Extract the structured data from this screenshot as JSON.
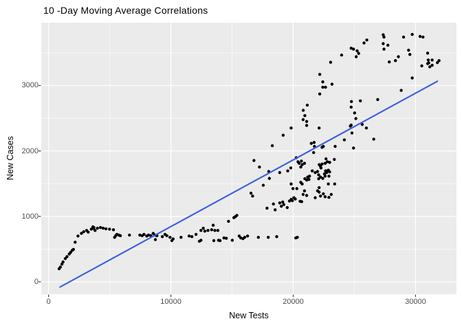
{
  "title": "10 -Day Moving Average Correlations",
  "chart_data": {
    "type": "scatter",
    "title": "10 -Day Moving Average Correlations",
    "xlabel": "New Tests",
    "ylabel": "New Cases",
    "x_ticks": [
      0,
      10000,
      20000,
      30000
    ],
    "x_minor_ticks": [
      5000,
      15000,
      25000
    ],
    "y_ticks": [
      0,
      1000,
      2000,
      3000
    ],
    "y_minor_ticks": [
      500,
      1500,
      2500,
      3500
    ],
    "xlim": [
      -600,
      33350
    ],
    "ylim": [
      -190,
      3960
    ],
    "grid": "on",
    "legend": "none",
    "colors": {
      "panel_bg": "#EBEBEB",
      "grid_major": "#FFFFFF",
      "grid_minor": "#FFFFFF",
      "point": "#000000",
      "trend": "#3D62DC",
      "tick": "#333333",
      "axis_text": "#4D4D4D"
    },
    "trend_line": {
      "x1": 930,
      "y1": -80,
      "x2": 31790,
      "y2": 3065
    },
    "points": [
      [
        860,
        200
      ],
      [
        960,
        225
      ],
      [
        1090,
        270
      ],
      [
        1180,
        305
      ],
      [
        1370,
        355
      ],
      [
        1500,
        385
      ],
      [
        1690,
        425
      ],
      [
        1800,
        450
      ],
      [
        1930,
        480
      ],
      [
        2030,
        495
      ],
      [
        2170,
        605
      ],
      [
        2400,
        700
      ],
      [
        2680,
        740
      ],
      [
        2870,
        765
      ],
      [
        3110,
        785
      ],
      [
        3240,
        760
      ],
      [
        3490,
        805
      ],
      [
        3620,
        840
      ],
      [
        3670,
        815
      ],
      [
        3700,
        830
      ],
      [
        3800,
        785
      ],
      [
        3990,
        820
      ],
      [
        4240,
        830
      ],
      [
        4460,
        820
      ],
      [
        4690,
        810
      ],
      [
        4980,
        805
      ],
      [
        5300,
        795
      ],
      [
        5400,
        680
      ],
      [
        5490,
        705
      ],
      [
        5590,
        725
      ],
      [
        5740,
        715
      ],
      [
        5870,
        705
      ],
      [
        6610,
        715
      ],
      [
        7460,
        715
      ],
      [
        7650,
        705
      ],
      [
        7800,
        725
      ],
      [
        8020,
        700
      ],
      [
        8170,
        715
      ],
      [
        8360,
        705
      ],
      [
        8550,
        740
      ],
      [
        8680,
        715
      ],
      [
        8730,
        645
      ],
      [
        8860,
        705
      ],
      [
        9300,
        690
      ],
      [
        9520,
        725
      ],
      [
        9670,
        705
      ],
      [
        9930,
        680
      ],
      [
        10080,
        630
      ],
      [
        10180,
        655
      ],
      [
        10830,
        680
      ],
      [
        11490,
        700
      ],
      [
        11720,
        690
      ],
      [
        12050,
        725
      ],
      [
        12330,
        620
      ],
      [
        12460,
        635
      ],
      [
        12460,
        785
      ],
      [
        12650,
        820
      ],
      [
        12770,
        775
      ],
      [
        13030,
        785
      ],
      [
        13330,
        795
      ],
      [
        13460,
        865
      ],
      [
        13510,
        630
      ],
      [
        13590,
        785
      ],
      [
        13840,
        785
      ],
      [
        13890,
        635
      ],
      [
        14020,
        630
      ],
      [
        14340,
        670
      ],
      [
        14530,
        665
      ],
      [
        14710,
        925
      ],
      [
        15020,
        635
      ],
      [
        15150,
        980
      ],
      [
        15270,
        995
      ],
      [
        15390,
        1015
      ],
      [
        15580,
        700
      ],
      [
        15710,
        670
      ],
      [
        15890,
        660
      ],
      [
        16030,
        680
      ],
      [
        16270,
        700
      ],
      [
        16550,
        1355
      ],
      [
        16680,
        1310
      ],
      [
        16790,
        1855
      ],
      [
        17150,
        680
      ],
      [
        17240,
        1755
      ],
      [
        17550,
        1475
      ],
      [
        17860,
        1125
      ],
      [
        17960,
        680
      ],
      [
        18050,
        1580
      ],
      [
        18000,
        1685
      ],
      [
        18650,
        690
      ],
      [
        20210,
        670
      ],
      [
        20340,
        680
      ],
      [
        18380,
        1190
      ],
      [
        18520,
        1100
      ],
      [
        18900,
        1205
      ],
      [
        19030,
        1155
      ],
      [
        19140,
        1220
      ],
      [
        19230,
        1180
      ],
      [
        19510,
        1135
      ],
      [
        19690,
        1235
      ],
      [
        19830,
        1260
      ],
      [
        19930,
        1240
      ],
      [
        20050,
        1285
      ],
      [
        20170,
        1265
      ],
      [
        20560,
        1230
      ],
      [
        20690,
        1225
      ],
      [
        18290,
        2080
      ],
      [
        19180,
        2240
      ],
      [
        19830,
        2350
      ],
      [
        20250,
        1895
      ],
      [
        20390,
        1835
      ],
      [
        20670,
        1845
      ],
      [
        20490,
        1810
      ],
      [
        20730,
        1790
      ],
      [
        20920,
        1810
      ],
      [
        20620,
        1755
      ],
      [
        19550,
        1695
      ],
      [
        19800,
        1740
      ],
      [
        18900,
        1670
      ],
      [
        21560,
        1695
      ],
      [
        21800,
        1670
      ],
      [
        21180,
        1600
      ],
      [
        21290,
        1565
      ],
      [
        21100,
        1555
      ],
      [
        20950,
        1575
      ],
      [
        21330,
        1615
      ],
      [
        19830,
        1495
      ],
      [
        20620,
        1520
      ],
      [
        20730,
        1495
      ],
      [
        19980,
        1425
      ],
      [
        20300,
        1425
      ],
      [
        20920,
        1390
      ],
      [
        20810,
        1335
      ],
      [
        21100,
        1320
      ],
      [
        21800,
        1285
      ],
      [
        21480,
        2115
      ],
      [
        21710,
        2130
      ],
      [
        21740,
        2070
      ],
      [
        22360,
        2055
      ],
      [
        21670,
        1975
      ],
      [
        22790,
        1835
      ],
      [
        22980,
        1825
      ],
      [
        22610,
        1810
      ],
      [
        22360,
        1800
      ],
      [
        22120,
        1790
      ],
      [
        22230,
        1765
      ],
      [
        22270,
        1740
      ],
      [
        22680,
        1880
      ],
      [
        23360,
        1870
      ],
      [
        22640,
        1695
      ],
      [
        22980,
        1680
      ],
      [
        22740,
        1670
      ],
      [
        22550,
        1650
      ],
      [
        22080,
        1635
      ],
      [
        21990,
        1685
      ],
      [
        22230,
        1600
      ],
      [
        22610,
        1615
      ],
      [
        22920,
        1615
      ],
      [
        22420,
        1580
      ],
      [
        22080,
        1575
      ],
      [
        22870,
        1495
      ],
      [
        23390,
        1495
      ],
      [
        22120,
        1440
      ],
      [
        21990,
        1390
      ],
      [
        22460,
        1345
      ],
      [
        23110,
        1335
      ],
      [
        22230,
        1310
      ],
      [
        22610,
        1300
      ],
      [
        22920,
        1290
      ],
      [
        22120,
        1370
      ],
      [
        22870,
        1705
      ],
      [
        22680,
        1695
      ],
      [
        22460,
        2070
      ],
      [
        23430,
        2070
      ],
      [
        22120,
        2350
      ],
      [
        24180,
        2170
      ],
      [
        24800,
        2275
      ],
      [
        24930,
        2045
      ],
      [
        26580,
        2180
      ],
      [
        20820,
        2620
      ],
      [
        20950,
        2540
      ],
      [
        20810,
        2480
      ],
      [
        21100,
        2450
      ],
      [
        21100,
        2390
      ],
      [
        21150,
        2700
      ],
      [
        24760,
        2755
      ],
      [
        24740,
        2670
      ],
      [
        25020,
        2580
      ],
      [
        25120,
        2495
      ],
      [
        24670,
        2380
      ],
      [
        24740,
        2395
      ],
      [
        25640,
        2405
      ],
      [
        25980,
        2350
      ],
      [
        25490,
        2765
      ],
      [
        26910,
        2785
      ],
      [
        28830,
        2925
      ],
      [
        29730,
        3115
      ],
      [
        22170,
        3170
      ],
      [
        22420,
        3055
      ],
      [
        22420,
        2975
      ],
      [
        22640,
        2975
      ],
      [
        22170,
        2870
      ],
      [
        23060,
        3355
      ],
      [
        23170,
        3020
      ],
      [
        23960,
        3465
      ],
      [
        24740,
        3570
      ],
      [
        24930,
        3555
      ],
      [
        25230,
        3530
      ],
      [
        25350,
        3490
      ],
      [
        25150,
        3440
      ],
      [
        25790,
        3650
      ],
      [
        26020,
        3695
      ],
      [
        27360,
        3775
      ],
      [
        27420,
        3740
      ],
      [
        27360,
        3640
      ],
      [
        27420,
        3555
      ],
      [
        27740,
        3615
      ],
      [
        27850,
        3360
      ],
      [
        28360,
        3380
      ],
      [
        28600,
        3440
      ],
      [
        29020,
        3740
      ],
      [
        29430,
        3540
      ],
      [
        29540,
        3475
      ],
      [
        29730,
        3780
      ],
      [
        30370,
        3750
      ],
      [
        30610,
        3740
      ],
      [
        30510,
        3300
      ],
      [
        30990,
        3495
      ],
      [
        31040,
        3390
      ],
      [
        31080,
        3345
      ],
      [
        31170,
        3285
      ],
      [
        31360,
        3310
      ],
      [
        31790,
        3350
      ],
      [
        31920,
        3380
      ],
      [
        31360,
        3390
      ],
      [
        30990,
        3335
      ]
    ]
  }
}
